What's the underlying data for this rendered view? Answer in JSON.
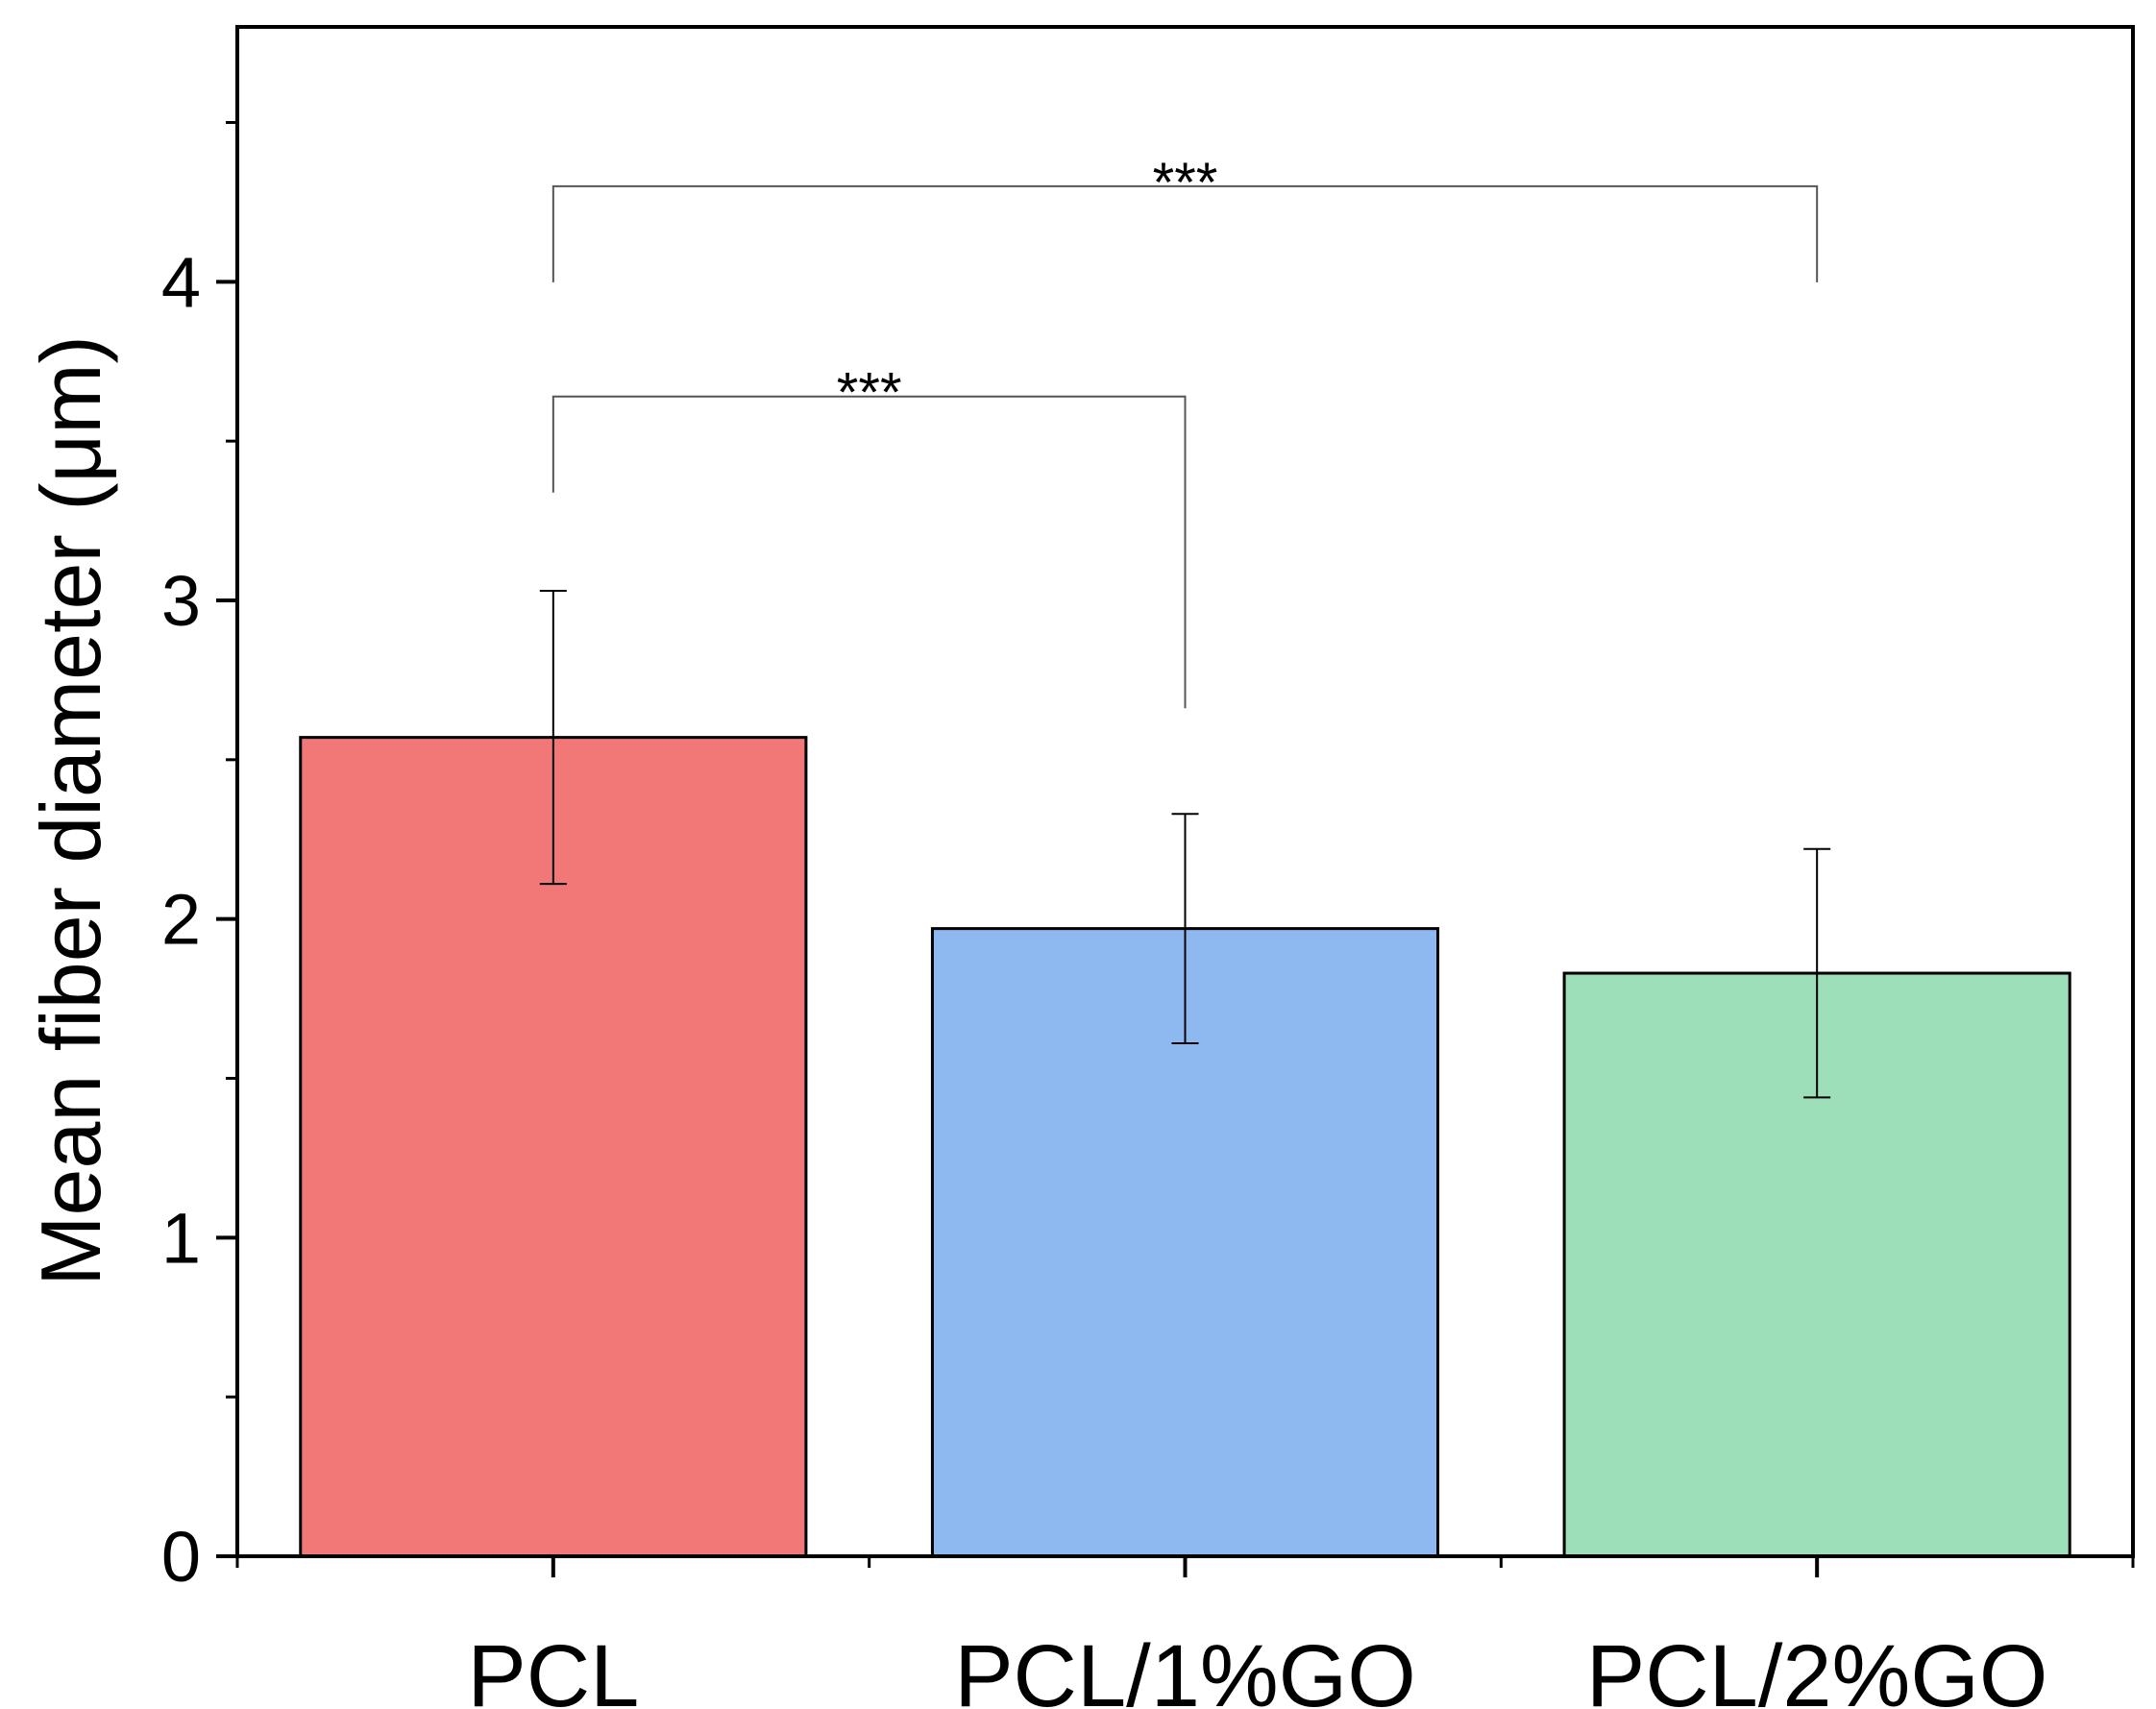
{
  "chart_data": {
    "type": "bar",
    "title": "",
    "xlabel": "",
    "ylabel": "Mean fiber diameter (μm)",
    "ylim": [
      0,
      4.8
    ],
    "yticks": [
      0,
      1,
      2,
      3,
      4
    ],
    "ytick_labels": [
      "0",
      "1",
      "2",
      "3",
      "4"
    ],
    "grid": false,
    "categories": [
      "PCL",
      "PCL/1%GO",
      "PCL/2%GO"
    ],
    "values": [
      2.57,
      1.97,
      1.83
    ],
    "error": [
      0.46,
      0.36,
      0.39
    ],
    "colors": [
      "#f27878",
      "#8db8f0",
      "#9ddfb9"
    ],
    "significance": [
      {
        "from": "PCL",
        "to": "PCL/2%GO",
        "label": "***"
      },
      {
        "from": "PCL",
        "to": "PCL/1%GO",
        "label": "***"
      }
    ]
  }
}
